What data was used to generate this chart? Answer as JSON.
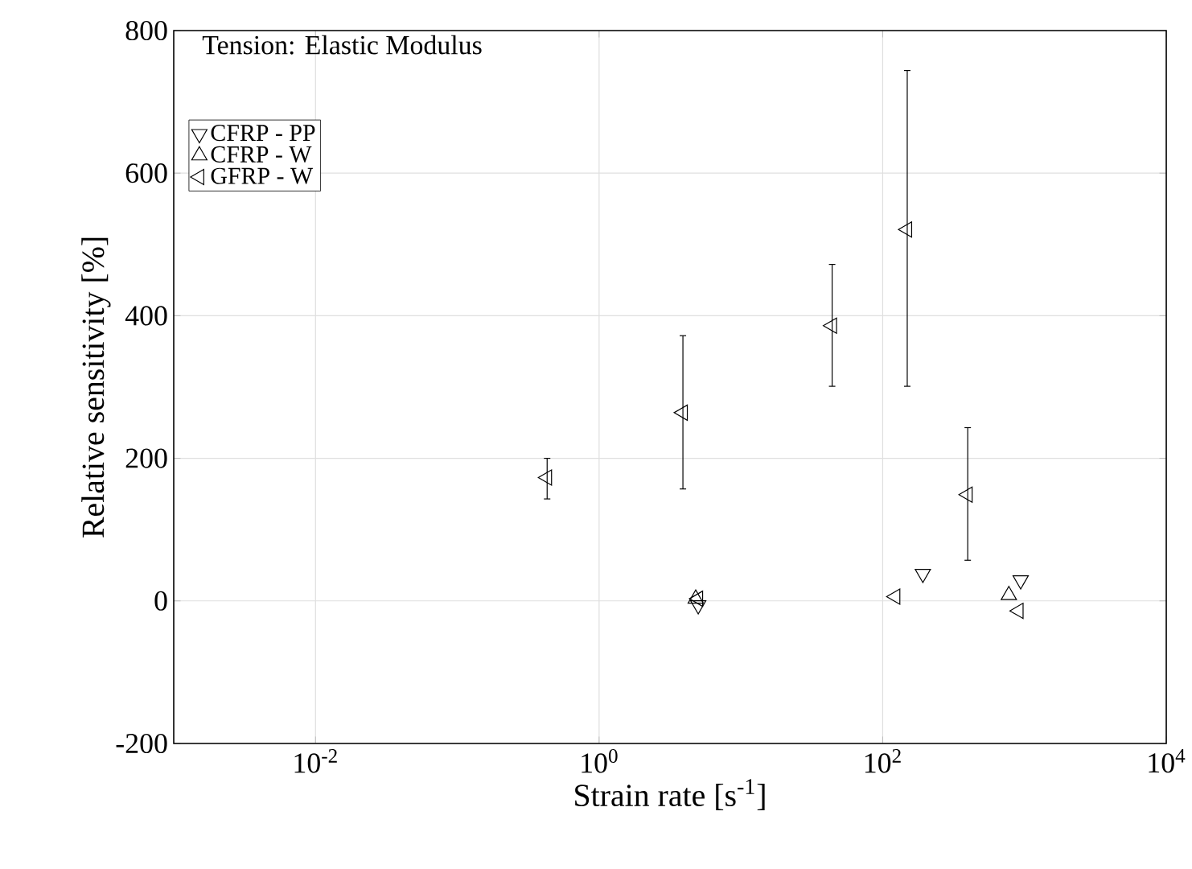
{
  "chart_data": {
    "type": "scatter",
    "title": "Tension: Elastic Modulus",
    "xlabel": "Strain rate [s$^{-1}$]",
    "ylabel": "Relative sensitivity [%]",
    "log": "x",
    "grid": true,
    "legend": "top left",
    "xlim": [
      0.001,
      10000
    ],
    "xticks": [
      {
        "value": 0.01,
        "label": "10$^{-2}$"
      },
      {
        "value": 1,
        "label": "10$^{0}$"
      },
      {
        "value": 100,
        "label": "10$^{2}$"
      },
      {
        "value": 10000,
        "label": "10$^{4}$"
      }
    ],
    "ylim": [
      -200,
      800
    ],
    "yticks": [
      -200,
      0,
      200,
      400,
      600,
      800
    ],
    "series": [
      {
        "name": "CFRP - PP",
        "color": "#000000",
        "marker": "triangle-down",
        "x": [
          192,
          940,
          5
        ],
        "values": [
          38,
          29,
          -6
        ]
      },
      {
        "name": "CFRP - W",
        "color": "#000000",
        "marker": "triangle",
        "x": [
          776,
          4.8
        ],
        "values": [
          8,
          3
        ]
      },
      {
        "name": "GFRP - W",
        "color": "#000000",
        "marker": "triangle-left",
        "x": [
          0.43,
          3.9,
          44,
          149,
          398,
          5,
          123,
          910
        ],
        "values": [
          173,
          264,
          386,
          521,
          149,
          3,
          6,
          -14
        ],
        "errors": [
          [
            143,
            200
          ],
          [
            157,
            372
          ],
          [
            301,
            472
          ],
          [
            301,
            744
          ],
          [
            57,
            243
          ],
          null,
          null,
          null
        ]
      }
    ]
  }
}
